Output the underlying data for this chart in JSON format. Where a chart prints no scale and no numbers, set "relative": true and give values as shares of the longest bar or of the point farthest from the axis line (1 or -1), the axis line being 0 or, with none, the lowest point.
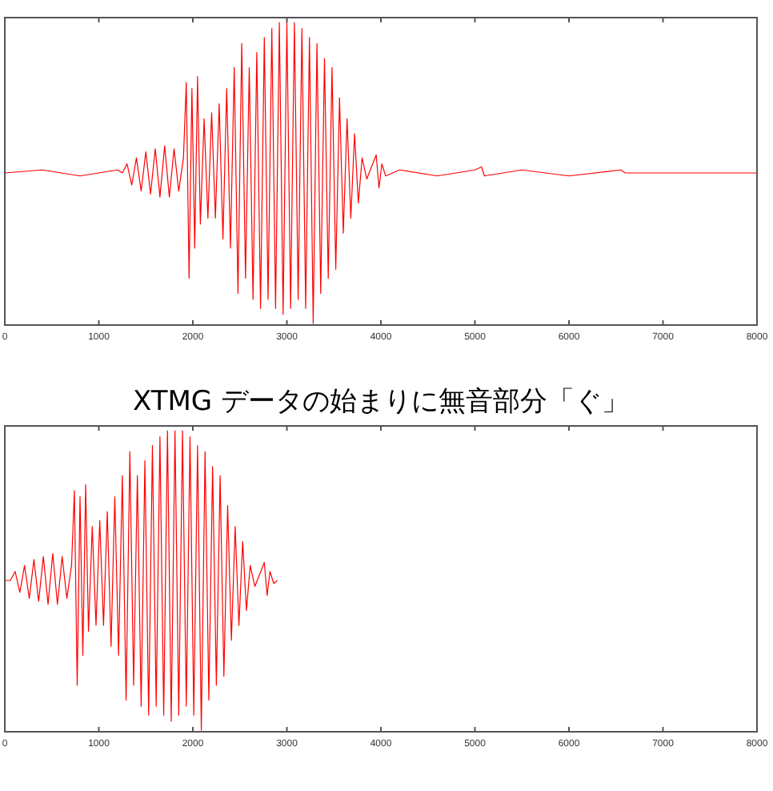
{
  "chart_data": [
    {
      "type": "line",
      "relative": true,
      "xlim": [
        0,
        8000
      ],
      "xticks": [
        0,
        1000,
        2000,
        3000,
        4000,
        5000,
        6000,
        7000,
        8000
      ],
      "tick_labels": "x",
      "grid": false,
      "line_style": "solid",
      "series": [
        {
          "color": "#ff0000",
          "x": [
            0,
            400,
            800,
            1200,
            1250,
            1300,
            1350,
            1400,
            1450,
            1500,
            1550,
            1600,
            1650,
            1700,
            1750,
            1800,
            1850,
            1900,
            1930,
            1960,
            1990,
            2020,
            2050,
            2080,
            2120,
            2160,
            2200,
            2240,
            2280,
            2320,
            2360,
            2400,
            2440,
            2480,
            2520,
            2560,
            2600,
            2640,
            2680,
            2720,
            2760,
            2800,
            2840,
            2880,
            2920,
            2960,
            3000,
            3040,
            3080,
            3120,
            3160,
            3200,
            3240,
            3280,
            3320,
            3360,
            3400,
            3440,
            3480,
            3520,
            3560,
            3600,
            3640,
            3680,
            3720,
            3760,
            3800,
            3850,
            3900,
            3950,
            3980,
            4010,
            4050,
            4200,
            4600,
            5000,
            5070,
            5100,
            5500,
            6000,
            6550,
            6600,
            8000
          ],
          "values": [
            0.5,
            0.51,
            0.49,
            0.51,
            0.5,
            0.53,
            0.46,
            0.55,
            0.44,
            0.57,
            0.43,
            0.58,
            0.42,
            0.59,
            0.42,
            0.58,
            0.44,
            0.55,
            0.8,
            0.15,
            0.78,
            0.25,
            0.82,
            0.33,
            0.68,
            0.35,
            0.7,
            0.35,
            0.73,
            0.28,
            0.78,
            0.25,
            0.85,
            0.1,
            0.93,
            0.15,
            0.85,
            0.08,
            0.9,
            0.05,
            0.95,
            0.08,
            0.98,
            0.05,
            1,
            0.03,
            1,
            0.05,
            1,
            0.08,
            0.98,
            0.05,
            0.95,
            0,
            0.93,
            0.1,
            0.88,
            0.15,
            0.85,
            0.18,
            0.75,
            0.3,
            0.68,
            0.35,
            0.63,
            0.4,
            0.55,
            0.48,
            0.52,
            0.56,
            0.45,
            0.53,
            0.49,
            0.51,
            0.49,
            0.51,
            0.52,
            0.49,
            0.51,
            0.49,
            0.51,
            0.5,
            0.5
          ]
        }
      ]
    },
    {
      "type": "line",
      "relative": true,
      "title": "XTMG データの始まりに無音部分「ぐ」",
      "xlim": [
        0,
        8000
      ],
      "xticks": [
        0,
        1000,
        2000,
        3000,
        4000,
        5000,
        6000,
        7000,
        8000
      ],
      "tick_labels": "x",
      "grid": false,
      "line_style": "solid",
      "series": [
        {
          "color": "#ff0000",
          "x": [
            0,
            60,
            110,
            160,
            210,
            260,
            310,
            360,
            410,
            460,
            510,
            560,
            610,
            660,
            710,
            740,
            770,
            800,
            830,
            860,
            890,
            930,
            970,
            1010,
            1050,
            1090,
            1130,
            1170,
            1210,
            1250,
            1290,
            1330,
            1370,
            1410,
            1450,
            1490,
            1530,
            1570,
            1610,
            1650,
            1690,
            1730,
            1770,
            1810,
            1850,
            1890,
            1930,
            1970,
            2010,
            2050,
            2090,
            2130,
            2170,
            2210,
            2250,
            2290,
            2330,
            2370,
            2410,
            2450,
            2490,
            2530,
            2570,
            2610,
            2660,
            2710,
            2760,
            2790,
            2820,
            2860,
            2900
          ],
          "values": [
            0.5,
            0.5,
            0.53,
            0.46,
            0.55,
            0.44,
            0.57,
            0.43,
            0.58,
            0.42,
            0.59,
            0.42,
            0.58,
            0.44,
            0.55,
            0.8,
            0.15,
            0.78,
            0.25,
            0.82,
            0.33,
            0.68,
            0.35,
            0.7,
            0.35,
            0.73,
            0.28,
            0.78,
            0.25,
            0.85,
            0.1,
            0.93,
            0.15,
            0.85,
            0.08,
            0.9,
            0.05,
            0.95,
            0.08,
            0.98,
            0.05,
            1,
            0.03,
            1,
            0.05,
            1,
            0.08,
            0.98,
            0.05,
            0.95,
            0,
            0.93,
            0.1,
            0.88,
            0.15,
            0.85,
            0.18,
            0.75,
            0.3,
            0.68,
            0.35,
            0.63,
            0.4,
            0.55,
            0.48,
            0.52,
            0.56,
            0.45,
            0.53,
            0.49,
            0.5
          ]
        }
      ]
    }
  ]
}
